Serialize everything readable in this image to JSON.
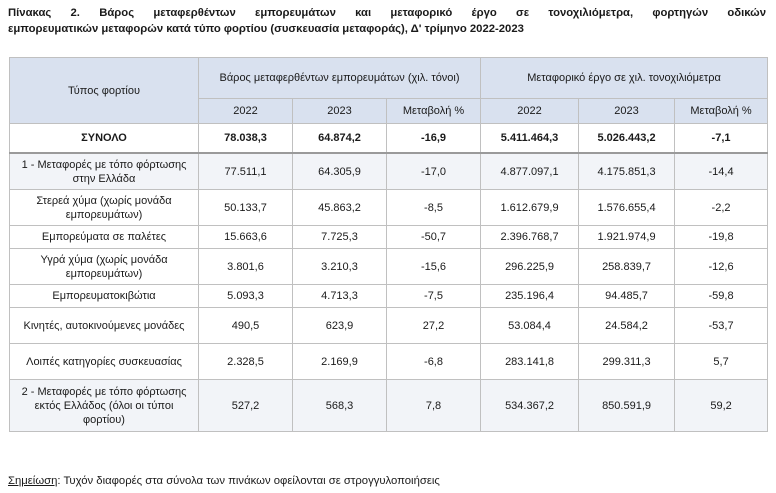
{
  "title": {
    "line1": "Πίνακας 2. Βάρος μεταφερθέντων εμπορευμάτων και μεταφορικό έργο σε τονοχιλιόμετρα, φορτηγών οδικών",
    "line2": "εμπορευματικών μεταφορών κατά τύπο φορτίου (συσκευασία μεταφοράς), Δ' τρίμηνο 2022-2023"
  },
  "table": {
    "row_header": "Τύπος φορτίου",
    "group1": "Βάρος μεταφερθέντων εμπορευμάτων (χιλ. τόνοι)",
    "group2": "Μεταφορικό έργο σε χιλ. τονοχιλιόμετρα",
    "columns": [
      "2022",
      "2023",
      "Μεταβολή %",
      "2022",
      "2023",
      "Μεταβολή %"
    ],
    "rows": [
      {
        "label": "ΣΥΝΟΛΟ",
        "values": [
          "78.038,3",
          "64.874,2",
          "-16,9",
          "5.411.464,3",
          "5.026.443,2",
          "-7,1"
        ]
      },
      {
        "label": "1 - Μεταφορές με τόπο φόρτωσης στην Ελλάδα",
        "values": [
          "77.511,1",
          "64.305,9",
          "-17,0",
          "4.877.097,1",
          "4.175.851,3",
          "-14,4"
        ]
      },
      {
        "label": "Στερεά χύμα (χωρίς μονάδα εμπορευμάτων)",
        "values": [
          "50.133,7",
          "45.863,2",
          "-8,5",
          "1.612.679,9",
          "1.576.655,4",
          "-2,2"
        ]
      },
      {
        "label": "Εμπορεύματα σε παλέτες",
        "values": [
          "15.663,6",
          "7.725,3",
          "-50,7",
          "2.396.768,7",
          "1.921.974,9",
          "-19,8"
        ]
      },
      {
        "label": "Υγρά χύμα (χωρίς μονάδα εμπορευμάτων)",
        "values": [
          "3.801,6",
          "3.210,3",
          "-15,6",
          "296.225,9",
          "258.839,7",
          "-12,6"
        ]
      },
      {
        "label": "Εμπορευματοκιβώτια",
        "values": [
          "5.093,3",
          "4.713,3",
          "-7,5",
          "235.196,4",
          "94.485,7",
          "-59,8"
        ]
      },
      {
        "label": "Κινητές, αυτοκινούμενες μονάδες",
        "values": [
          "490,5",
          "623,9",
          "27,2",
          "53.084,4",
          "24.584,2",
          "-53,7"
        ]
      },
      {
        "label": "Λοιπές κατηγορίες συσκευασίας",
        "values": [
          "2.328,5",
          "2.169,9",
          "-6,8",
          "283.141,8",
          "299.311,3",
          "5,7"
        ]
      },
      {
        "label": "2 - Μεταφορές με τόπο φόρτωσης εκτός Ελλάδος (όλοι οι τύποι φορτίου)",
        "values": [
          "527,2",
          "568,3",
          "7,8",
          "534.367,2",
          "850.591,9",
          "59,2"
        ]
      }
    ]
  },
  "note": {
    "label": "Σημείωση",
    "text": ": Τυχόν διαφορές στα σύνολα των πινάκων οφείλονται σε στρογγυλοποιήσεις"
  }
}
